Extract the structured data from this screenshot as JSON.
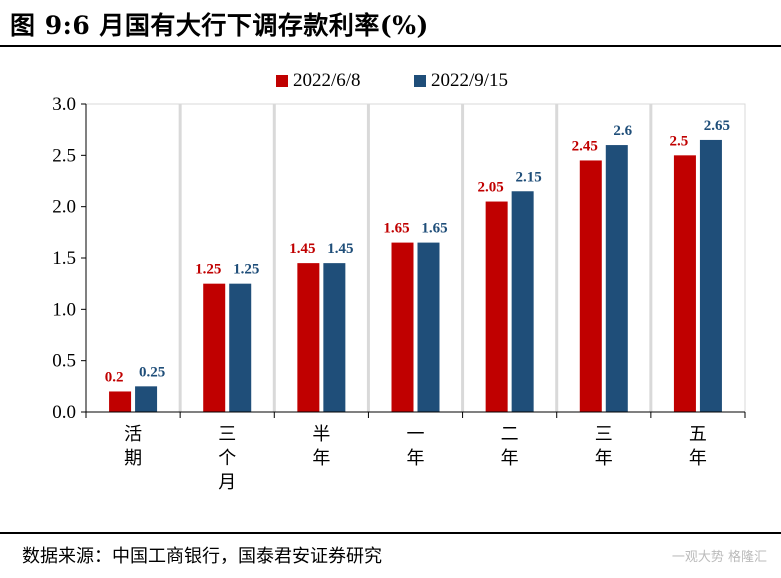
{
  "figure_title": "图 9:6 月国有大行下调存款利率(%)",
  "source": "数据来源：中国工商银行，国泰君安证券研究",
  "watermark": "一观大势 格隆汇",
  "colors": {
    "series_a": "#c00000",
    "series_b": "#1f4e79"
  },
  "chart_data": {
    "type": "bar",
    "categories": [
      "活期",
      "三个月",
      "半年",
      "一年",
      "二年",
      "三年",
      "五年"
    ],
    "series": [
      {
        "name": "2022/6/8",
        "values": [
          0.2,
          1.25,
          1.45,
          1.65,
          2.05,
          2.45,
          2.5
        ],
        "labels": [
          "0.2",
          "1.25",
          "1.45",
          "1.65",
          "2.05",
          "2.45",
          "2.5"
        ]
      },
      {
        "name": "2022/9/15",
        "values": [
          0.25,
          1.25,
          1.45,
          1.65,
          2.15,
          2.6,
          2.65
        ],
        "labels": [
          "0.25",
          "1.25",
          "1.45",
          "1.65",
          "2.15",
          "2.6",
          "2.65"
        ]
      }
    ],
    "ylim": [
      0,
      3.0
    ],
    "yticks": [
      "0.0",
      "0.5",
      "1.0",
      "1.5",
      "2.0",
      "2.5",
      "3.0"
    ],
    "grid": "vertical",
    "legend": "top"
  }
}
